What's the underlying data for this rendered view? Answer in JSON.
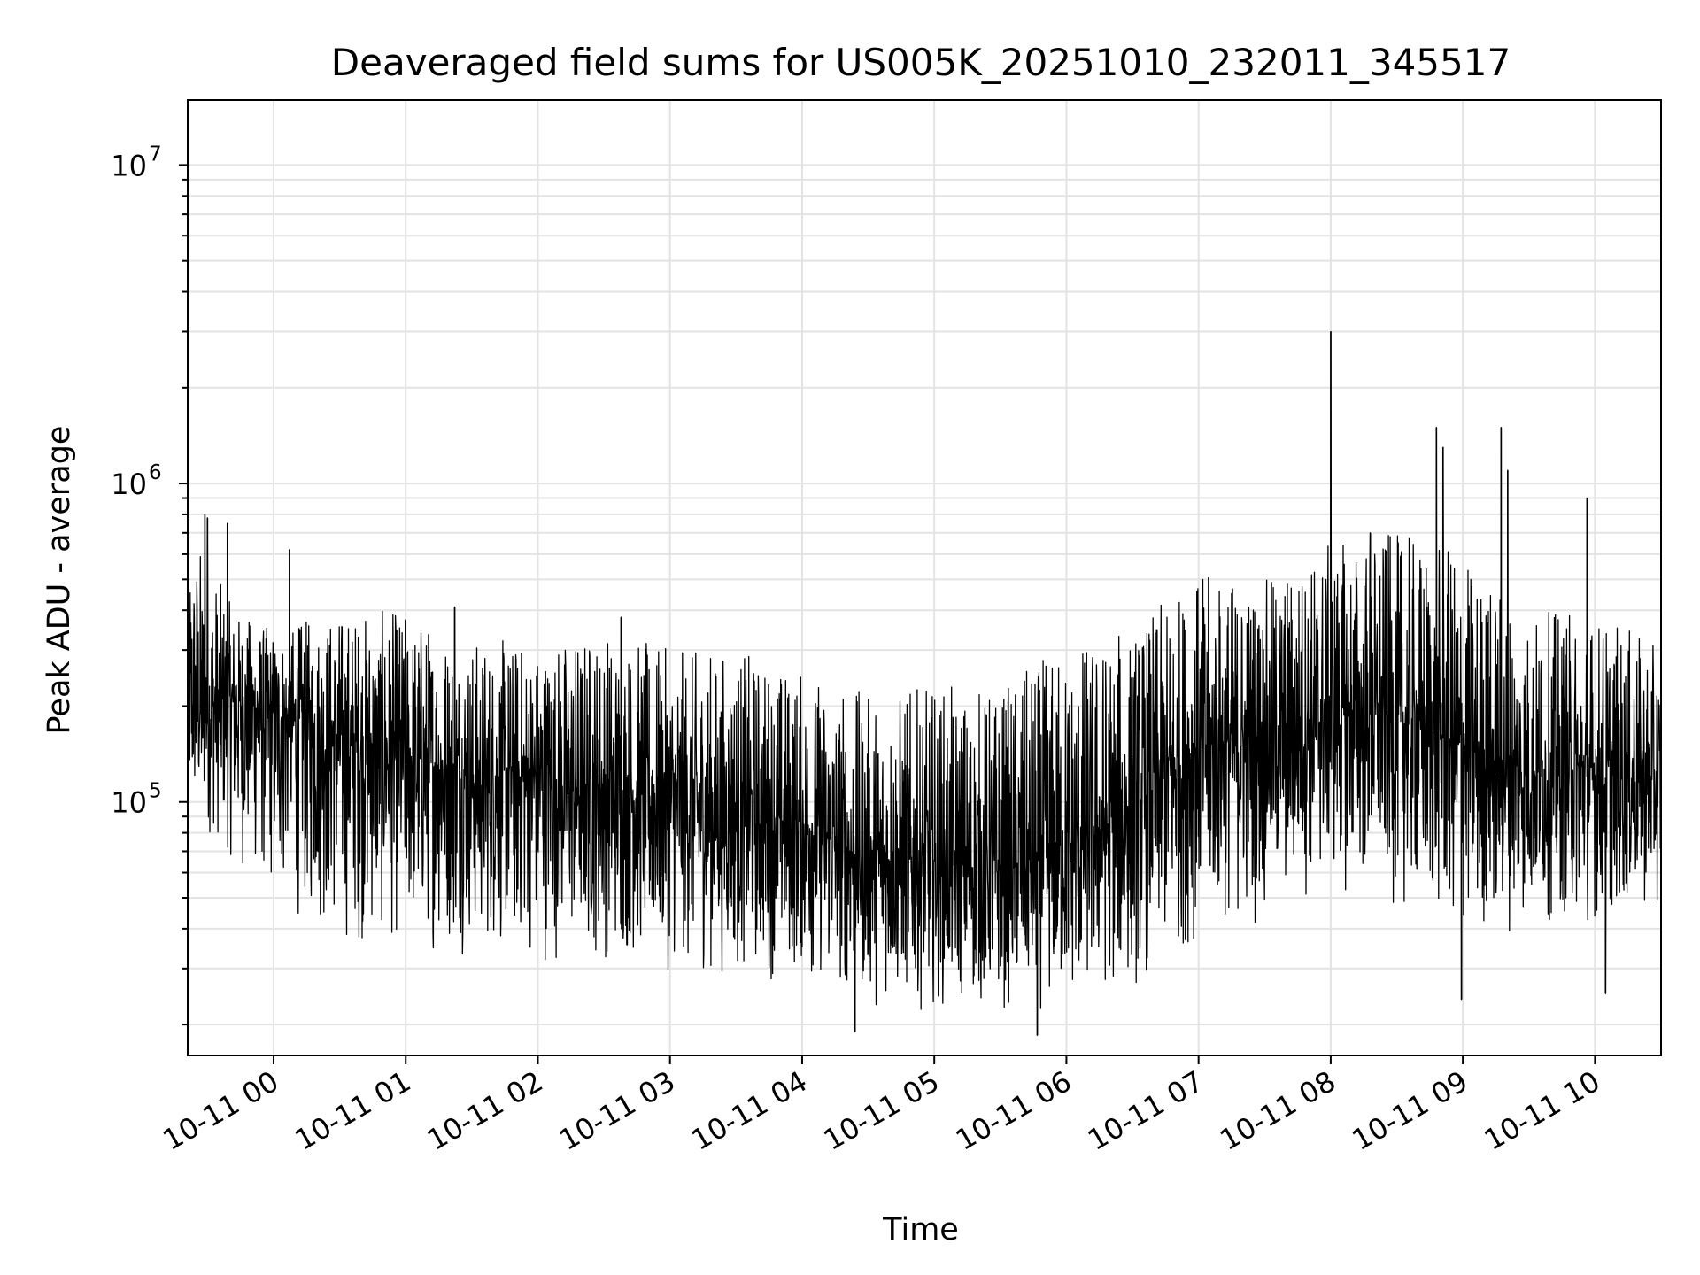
{
  "chart_data": {
    "type": "line",
    "title": "Deaveraged field sums for US005K_20251010_232011_345517",
    "xlabel": "Time",
    "ylabel": "Peak ADU - average",
    "yscale": "log",
    "ylim": [
      16000,
      16000000
    ],
    "xlim_hours": [
      -0.65,
      10.5
    ],
    "grid": true,
    "x_ticks": [
      {
        "hour": 0,
        "label": "10-11 00"
      },
      {
        "hour": 1,
        "label": "10-11 01"
      },
      {
        "hour": 2,
        "label": "10-11 02"
      },
      {
        "hour": 3,
        "label": "10-11 03"
      },
      {
        "hour": 4,
        "label": "10-11 04"
      },
      {
        "hour": 5,
        "label": "10-11 05"
      },
      {
        "hour": 6,
        "label": "10-11 06"
      },
      {
        "hour": 7,
        "label": "10-11 07"
      },
      {
        "hour": 8,
        "label": "10-11 08"
      },
      {
        "hour": 9,
        "label": "10-11 09"
      },
      {
        "hour": 10,
        "label": "10-11 10"
      }
    ],
    "y_ticks": [
      {
        "value": 100000,
        "base": "10",
        "exp": "5"
      },
      {
        "value": 1000000,
        "base": "10",
        "exp": "6"
      },
      {
        "value": 10000000,
        "base": "10",
        "exp": "7"
      }
    ],
    "series": [
      {
        "name": "deaveraged field sums",
        "color": "#000000",
        "envelope": [
          {
            "hour": -0.65,
            "median": 190000,
            "low": 90000,
            "high": 800000
          },
          {
            "hour": -0.3,
            "median": 210000,
            "low": 60000,
            "high": 400000
          },
          {
            "hour": 0.0,
            "median": 190000,
            "low": 45000,
            "high": 350000
          },
          {
            "hour": 0.5,
            "median": 160000,
            "low": 33000,
            "high": 400000
          },
          {
            "hour": 1.0,
            "median": 140000,
            "low": 33000,
            "high": 400000
          },
          {
            "hour": 1.5,
            "median": 120000,
            "low": 32000,
            "high": 330000
          },
          {
            "hour": 2.0,
            "median": 120000,
            "low": 30000,
            "high": 320000
          },
          {
            "hour": 2.5,
            "median": 110000,
            "low": 30000,
            "high": 360000
          },
          {
            "hour": 3.0,
            "median": 100000,
            "low": 28000,
            "high": 300000
          },
          {
            "hour": 3.5,
            "median": 95000,
            "low": 27000,
            "high": 300000
          },
          {
            "hour": 4.0,
            "median": 85000,
            "low": 26000,
            "high": 260000
          },
          {
            "hour": 4.5,
            "median": 65000,
            "low": 22000,
            "high": 220000
          },
          {
            "hour": 5.0,
            "median": 65000,
            "low": 22000,
            "high": 230000
          },
          {
            "hour": 5.5,
            "median": 60000,
            "low": 21000,
            "high": 230000
          },
          {
            "hour": 6.0,
            "median": 70000,
            "low": 21000,
            "high": 320000
          },
          {
            "hour": 6.5,
            "median": 95000,
            "low": 24000,
            "high": 350000
          },
          {
            "hour": 7.0,
            "median": 150000,
            "low": 35000,
            "high": 520000
          },
          {
            "hour": 7.5,
            "median": 160000,
            "low": 40000,
            "high": 500000
          },
          {
            "hour": 8.0,
            "median": 200000,
            "low": 50000,
            "high": 650000
          },
          {
            "hour": 8.5,
            "median": 180000,
            "low": 45000,
            "high": 700000
          },
          {
            "hour": 9.0,
            "median": 150000,
            "low": 33000,
            "high": 600000
          },
          {
            "hour": 9.5,
            "median": 120000,
            "low": 40000,
            "high": 400000
          },
          {
            "hour": 10.0,
            "median": 120000,
            "low": 40000,
            "high": 400000
          },
          {
            "hour": 10.5,
            "median": 115000,
            "low": 45000,
            "high": 300000
          }
        ],
        "spikes": [
          {
            "hour": -0.52,
            "value": 800000
          },
          {
            "hour": -0.5,
            "value": 780000
          },
          {
            "hour": -0.35,
            "value": 750000
          },
          {
            "hour": 0.12,
            "value": 620000
          },
          {
            "hour": 1.37,
            "value": 410000
          },
          {
            "hour": 2.63,
            "value": 380000
          },
          {
            "hour": 4.4,
            "value": 19000
          },
          {
            "hour": 5.78,
            "value": 18500
          },
          {
            "hour": 8.0,
            "value": 3000000
          },
          {
            "hour": 8.3,
            "value": 700000
          },
          {
            "hour": 8.8,
            "value": 1500000
          },
          {
            "hour": 8.85,
            "value": 1300000
          },
          {
            "hour": 8.99,
            "value": 24000
          },
          {
            "hour": 9.29,
            "value": 1500000
          },
          {
            "hour": 9.34,
            "value": 1100000
          },
          {
            "hour": 9.94,
            "value": 900000
          },
          {
            "hour": 10.08,
            "value": 25000
          }
        ]
      }
    ]
  }
}
